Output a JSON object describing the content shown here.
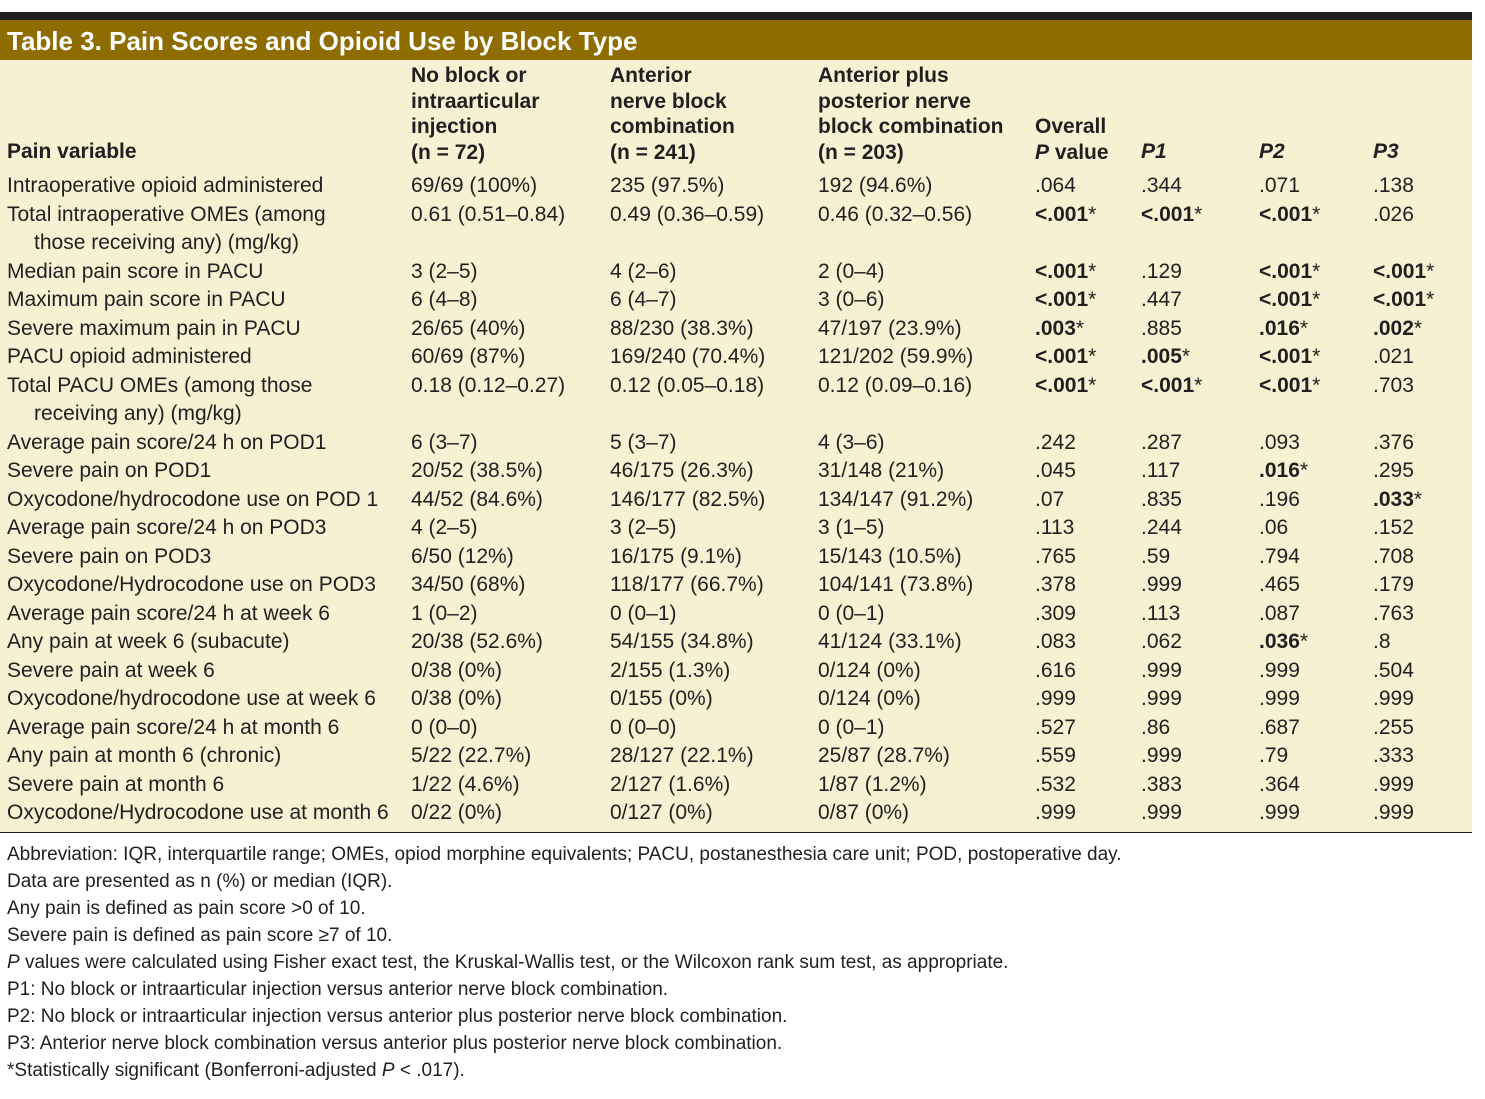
{
  "title": "Table 3.  Pain Scores and Opioid Use by Block Type",
  "headers": {
    "pain_variable": "Pain variable",
    "col1": [
      "No block or",
      "intraarticular",
      "injection",
      "(n = 72)"
    ],
    "col2": [
      "Anterior",
      "nerve block",
      "combination",
      "(n = 241)"
    ],
    "col3": [
      "Anterior plus",
      "posterior nerve",
      "block combination",
      "(n = 203)"
    ],
    "overall": [
      "Overall",
      "P",
      " value"
    ],
    "p1": "P1",
    "p2": "P2",
    "p3": "P3"
  },
  "rows": [
    {
      "label": [
        "Intraoperative opioid administered"
      ],
      "c1": "69/69 (100%)",
      "c2": "235 (97.5%)",
      "c3": "192 (94.6%)",
      "ov": ".064",
      "ov_sig": false,
      "p1": ".344",
      "p1_sig": false,
      "p2": ".071",
      "p2_sig": false,
      "p3": ".138",
      "p3_sig": false
    },
    {
      "label": [
        "Total intraoperative OMEs (among",
        "those receiving any) (mg/kg)"
      ],
      "c1": "0.61 (0.51–0.84)",
      "c2": "0.49 (0.36–0.59)",
      "c3": "0.46 (0.32–0.56)",
      "ov": "<.001",
      "ov_sig": true,
      "p1": "<.001",
      "p1_sig": true,
      "p2": "<.001",
      "p2_sig": true,
      "p3": ".026",
      "p3_sig": false
    },
    {
      "label": [
        "Median pain score in PACU"
      ],
      "c1": "3 (2–5)",
      "c2": "4 (2–6)",
      "c3": "2 (0–4)",
      "ov": "<.001",
      "ov_sig": true,
      "p1": ".129",
      "p1_sig": false,
      "p2": "<.001",
      "p2_sig": true,
      "p3": "<.001",
      "p3_sig": true
    },
    {
      "label": [
        "Maximum pain score in PACU"
      ],
      "c1": "6 (4–8)",
      "c2": "6 (4–7)",
      "c3": "3 (0–6)",
      "ov": "<.001",
      "ov_sig": true,
      "p1": ".447",
      "p1_sig": false,
      "p2": "<.001",
      "p2_sig": true,
      "p3": "<.001",
      "p3_sig": true
    },
    {
      "label": [
        "Severe maximum pain in PACU"
      ],
      "c1": "26/65 (40%)",
      "c2": "88/230 (38.3%)",
      "c3": "47/197 (23.9%)",
      "ov": ".003",
      "ov_sig": true,
      "p1": ".885",
      "p1_sig": false,
      "p2": ".016",
      "p2_sig": true,
      "p3": ".002",
      "p3_sig": true
    },
    {
      "label": [
        "PACU opioid administered"
      ],
      "c1": "60/69 (87%)",
      "c2": "169/240 (70.4%)",
      "c3": "121/202 (59.9%)",
      "ov": "<.001",
      "ov_sig": true,
      "p1": ".005",
      "p1_sig": true,
      "p2": "<.001",
      "p2_sig": true,
      "p3": ".021",
      "p3_sig": false
    },
    {
      "label": [
        "Total PACU OMEs (among those",
        "receiving any) (mg/kg)"
      ],
      "c1": "0.18 (0.12–0.27)",
      "c2": "0.12 (0.05–0.18)",
      "c3": "0.12 (0.09–0.16)",
      "ov": "<.001",
      "ov_sig": true,
      "p1": "<.001",
      "p1_sig": true,
      "p2": "<.001",
      "p2_sig": true,
      "p3": ".703",
      "p3_sig": false
    },
    {
      "label": [
        "Average pain score/24 h on POD1"
      ],
      "c1": "6 (3–7)",
      "c2": "5 (3–7)",
      "c3": "4 (3–6)",
      "ov": ".242",
      "ov_sig": false,
      "p1": ".287",
      "p1_sig": false,
      "p2": ".093",
      "p2_sig": false,
      "p3": ".376",
      "p3_sig": false
    },
    {
      "label": [
        "Severe pain on POD1"
      ],
      "c1": "20/52 (38.5%)",
      "c2": "46/175 (26.3%)",
      "c3": "31/148 (21%)",
      "ov": ".045",
      "ov_sig": false,
      "p1": ".117",
      "p1_sig": false,
      "p2": ".016",
      "p2_sig": true,
      "p3": ".295",
      "p3_sig": false
    },
    {
      "label": [
        "Oxycodone/hydrocodone use on POD 1"
      ],
      "c1": "44/52 (84.6%)",
      "c2": "146/177 (82.5%)",
      "c3": "134/147 (91.2%)",
      "ov": ".07",
      "ov_sig": false,
      "p1": ".835",
      "p1_sig": false,
      "p2": ".196",
      "p2_sig": false,
      "p3": ".033",
      "p3_sig": true
    },
    {
      "label": [
        "Average pain score/24 h on POD3"
      ],
      "c1": "4 (2–5)",
      "c2": "3 (2–5)",
      "c3": "3 (1–5)",
      "ov": ".113",
      "ov_sig": false,
      "p1": ".244",
      "p1_sig": false,
      "p2": ".06",
      "p2_sig": false,
      "p3": ".152",
      "p3_sig": false
    },
    {
      "label": [
        "Severe pain on POD3"
      ],
      "c1": "6/50 (12%)",
      "c2": "16/175 (9.1%)",
      "c3": "15/143 (10.5%)",
      "ov": ".765",
      "ov_sig": false,
      "p1": ".59",
      "p1_sig": false,
      "p2": ".794",
      "p2_sig": false,
      "p3": ".708",
      "p3_sig": false
    },
    {
      "label": [
        "Oxycodone/Hydrocodone use on POD3"
      ],
      "c1": "34/50 (68%)",
      "c2": "118/177 (66.7%)",
      "c3": "104/141 (73.8%)",
      "ov": ".378",
      "ov_sig": false,
      "p1": ".999",
      "p1_sig": false,
      "p2": ".465",
      "p2_sig": false,
      "p3": ".179",
      "p3_sig": false
    },
    {
      "label": [
        "Average pain score/24 h at week 6"
      ],
      "c1": "1 (0–2)",
      "c2": "0 (0–1)",
      "c3": "0 (0–1)",
      "ov": ".309",
      "ov_sig": false,
      "p1": ".113",
      "p1_sig": false,
      "p2": ".087",
      "p2_sig": false,
      "p3": ".763",
      "p3_sig": false
    },
    {
      "label": [
        "Any pain at week 6 (subacute)"
      ],
      "c1": "20/38 (52.6%)",
      "c2": "54/155 (34.8%)",
      "c3": "41/124 (33.1%)",
      "ov": ".083",
      "ov_sig": false,
      "p1": ".062",
      "p1_sig": false,
      "p2": ".036",
      "p2_sig": true,
      "p3": ".8",
      "p3_sig": false
    },
    {
      "label": [
        "Severe pain at week 6"
      ],
      "c1": "0/38 (0%)",
      "c2": "2/155 (1.3%)",
      "c3": "0/124 (0%)",
      "ov": ".616",
      "ov_sig": false,
      "p1": ".999",
      "p1_sig": false,
      "p2": ".999",
      "p2_sig": false,
      "p3": ".504",
      "p3_sig": false
    },
    {
      "label": [
        "Oxycodone/hydrocodone use at week 6"
      ],
      "c1": "0/38 (0%)",
      "c2": "0/155 (0%)",
      "c3": "0/124 (0%)",
      "ov": ".999",
      "ov_sig": false,
      "p1": ".999",
      "p1_sig": false,
      "p2": ".999",
      "p2_sig": false,
      "p3": ".999",
      "p3_sig": false
    },
    {
      "label": [
        "Average pain score/24 h at month 6"
      ],
      "c1": "0 (0–0)",
      "c2": "0 (0–0)",
      "c3": "0 (0–1)",
      "ov": ".527",
      "ov_sig": false,
      "p1": ".86",
      "p1_sig": false,
      "p2": ".687",
      "p2_sig": false,
      "p3": ".255",
      "p3_sig": false
    },
    {
      "label": [
        "Any pain at month 6 (chronic)"
      ],
      "c1": "5/22 (22.7%)",
      "c2": "28/127 (22.1%)",
      "c3": "25/87 (28.7%)",
      "ov": ".559",
      "ov_sig": false,
      "p1": ".999",
      "p1_sig": false,
      "p2": ".79",
      "p2_sig": false,
      "p3": ".333",
      "p3_sig": false
    },
    {
      "label": [
        "Severe pain at month 6"
      ],
      "c1": "1/22 (4.6%)",
      "c2": "2/127 (1.6%)",
      "c3": "1/87 (1.2%)",
      "ov": ".532",
      "ov_sig": false,
      "p1": ".383",
      "p1_sig": false,
      "p2": ".364",
      "p2_sig": false,
      "p3": ".999",
      "p3_sig": false
    },
    {
      "label": [
        "Oxycodone/Hydrocodone use at month 6"
      ],
      "c1": "0/22 (0%)",
      "c2": "0/127 (0%)",
      "c3": "0/87 (0%)",
      "ov": ".999",
      "ov_sig": false,
      "p1": ".999",
      "p1_sig": false,
      "p2": ".999",
      "p2_sig": false,
      "p3": ".999",
      "p3_sig": false
    }
  ],
  "sig_marker": "*",
  "notes": [
    "Abbreviation: IQR, interquartile range; OMEs, opiod morphine equivalents; PACU, postanesthesia care unit; POD, postoperative day.",
    "Data are presented as n (%) or median (IQR).",
    "Any pain is defined as pain score >0 of 10.",
    "Severe pain is defined as pain score ≥7 of 10."
  ],
  "note_p_italic": "P",
  "note_p_rest": " values were calculated using Fisher exact test, the Kruskal-Wallis test, or the Wilcoxon rank sum test, as appropriate.",
  "notes_after": [
    "P1: No block or intraarticular injection versus anterior nerve block combination.",
    "P2: No block or intraarticular injection versus anterior plus posterior nerve block combination.",
    "P3: Anterior nerve block combination versus anterior plus posterior nerve block combination."
  ],
  "note_sig_pre": "*Statistically significant (Bonferroni-adjusted ",
  "note_sig_italic": "P",
  "note_sig_post": " < .017)."
}
